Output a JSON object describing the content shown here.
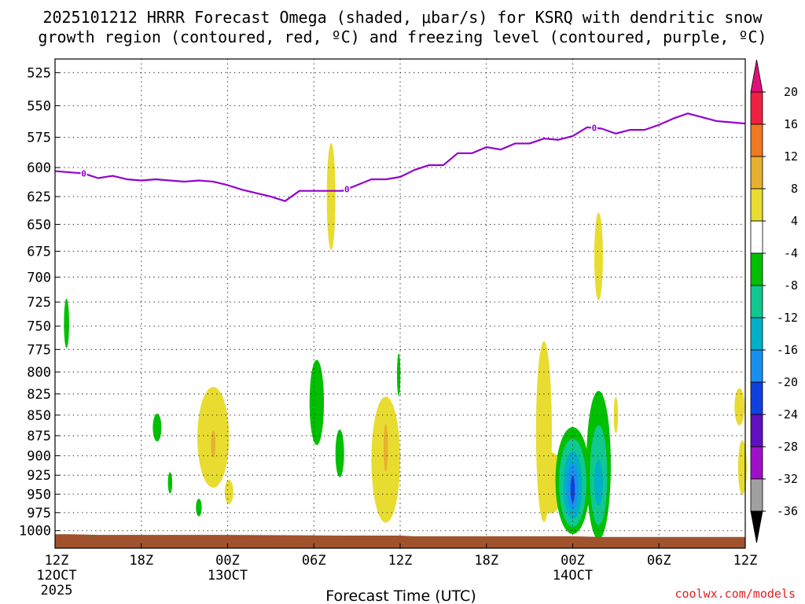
{
  "chart_data": {
    "type": "time-height contour",
    "title_line1": "2025101212 HRRR Forecast Omega (shaded, μbar/s) for KSRQ with dendritic snow",
    "title_line2": "growth region (contoured, red, ºC) and freezing level (contoured, purple, ºC)",
    "xlabel": "Forecast Time (UTC)",
    "credit": "coolwx.com/models",
    "x_range_hours": [
      0,
      48
    ],
    "y_range_hpa": [
      1025,
      515
    ],
    "x_ticks": [
      {
        "h": 0,
        "l1": "12Z",
        "l2": "12OCT",
        "l3": "2025"
      },
      {
        "h": 6,
        "l1": "18Z",
        "l2": "",
        "l3": ""
      },
      {
        "h": 12,
        "l1": "00Z",
        "l2": "13OCT",
        "l3": ""
      },
      {
        "h": 18,
        "l1": "06Z",
        "l2": "",
        "l3": ""
      },
      {
        "h": 24,
        "l1": "12Z",
        "l2": "",
        "l3": ""
      },
      {
        "h": 30,
        "l1": "18Z",
        "l2": "",
        "l3": ""
      },
      {
        "h": 36,
        "l1": "00Z",
        "l2": "14OCT",
        "l3": ""
      },
      {
        "h": 42,
        "l1": "06Z",
        "l2": "",
        "l3": ""
      },
      {
        "h": 48,
        "l1": "12Z",
        "l2": "",
        "l3": ""
      }
    ],
    "y_ticks": [
      525,
      550,
      575,
      600,
      625,
      650,
      675,
      700,
      725,
      750,
      775,
      800,
      825,
      850,
      875,
      900,
      925,
      950,
      975,
      1000
    ],
    "y_tick_labels": [
      "525",
      "550",
      "575",
      "600",
      "625",
      "650",
      "675",
      "700",
      "725",
      "750",
      "775",
      "800",
      "825",
      "850",
      "875",
      "900",
      "925",
      "950",
      "975",
      "1000"
    ],
    "colorbar": {
      "labels": [
        "20",
        "16",
        "12",
        "8",
        "4",
        "-4",
        "-8",
        "-12",
        "-16",
        "-20",
        "-24",
        "-28",
        "-32",
        "-36"
      ],
      "colors": [
        "#f02040",
        "#f07820",
        "#e8b030",
        "#e8dc30",
        "#ffffff",
        "#00c000",
        "#10c890",
        "#00b0c8",
        "#1890f0",
        "#1040e0",
        "#6010c0",
        "#a010c8",
        "#a0a0a0"
      ],
      "top_arrow_color": "#e0107a",
      "bottom_arrow_color": "#000000"
    },
    "freezing_level": {
      "contour_value": "0",
      "color": "#9400cc",
      "points": [
        [
          0,
          603
        ],
        [
          1,
          604
        ],
        [
          2,
          605
        ],
        [
          3,
          609
        ],
        [
          4,
          607
        ],
        [
          5,
          610
        ],
        [
          6,
          611
        ],
        [
          7,
          610
        ],
        [
          8,
          611
        ],
        [
          9,
          612
        ],
        [
          10,
          611
        ],
        [
          11,
          612
        ],
        [
          12,
          615
        ],
        [
          13,
          619
        ],
        [
          14,
          622
        ],
        [
          15,
          625
        ],
        [
          16,
          629
        ],
        [
          17,
          620
        ],
        [
          18,
          620
        ],
        [
          19,
          620
        ],
        [
          20,
          620
        ],
        [
          21,
          615
        ],
        [
          22,
          610
        ],
        [
          23,
          610
        ],
        [
          24,
          608
        ],
        [
          25,
          602
        ],
        [
          26,
          598
        ],
        [
          27,
          598
        ],
        [
          28,
          588
        ],
        [
          29,
          588
        ],
        [
          30,
          583
        ],
        [
          31,
          585
        ],
        [
          32,
          580
        ],
        [
          33,
          580
        ],
        [
          34,
          576
        ],
        [
          35,
          577
        ],
        [
          36,
          574
        ],
        [
          37,
          567
        ],
        [
          38,
          568
        ],
        [
          39,
          572
        ],
        [
          40,
          569
        ],
        [
          41,
          569
        ],
        [
          42,
          565
        ],
        [
          43,
          560
        ],
        [
          44,
          556
        ],
        [
          45,
          559
        ],
        [
          46,
          562
        ],
        [
          47,
          563
        ],
        [
          48,
          564
        ]
      ],
      "label_hours": [
        2,
        20.3,
        37.5
      ]
    },
    "surface_fill_color": "#a0522d",
    "surface": [
      [
        0,
        1005
      ],
      [
        1,
        1005
      ],
      [
        3,
        1006
      ],
      [
        12,
        1006
      ],
      [
        20,
        1007
      ],
      [
        24,
        1007
      ],
      [
        25,
        1008
      ],
      [
        36,
        1008
      ],
      [
        38,
        1009
      ],
      [
        48,
        1009
      ]
    ],
    "omega_shading": [
      {
        "color": "#e8dc30",
        "value": 4,
        "cx": 19.2,
        "cy": 625,
        "rx": 0.3,
        "ry": 47
      },
      {
        "color": "#e8dc30",
        "value": 4,
        "cx": 11.0,
        "cy": 877,
        "rx": 1.1,
        "ry": 62
      },
      {
        "color": "#e8dc30",
        "value": 4,
        "cx": 12.1,
        "cy": 947,
        "rx": 0.3,
        "ry": 16
      },
      {
        "color": "#e8b030",
        "value": 8,
        "cx": 11.0,
        "cy": 885,
        "rx": 0.15,
        "ry": 17
      },
      {
        "color": "#e8dc30",
        "value": 4,
        "cx": 23.0,
        "cy": 905,
        "rx": 1.0,
        "ry": 80
      },
      {
        "color": "#e8b030",
        "value": 8,
        "cx": 23.0,
        "cy": 890,
        "rx": 0.15,
        "ry": 30
      },
      {
        "color": "#e8dc30",
        "value": 4,
        "cx": 34.0,
        "cy": 870,
        "rx": 0.55,
        "ry": 110
      },
      {
        "color": "#e8dc30",
        "value": 4,
        "cx": 34.5,
        "cy": 935,
        "rx": 0.9,
        "ry": 40
      },
      {
        "color": "#e8dc30",
        "value": 4,
        "cx": 37.8,
        "cy": 680,
        "rx": 0.3,
        "ry": 42
      },
      {
        "color": "#e8dc30",
        "value": 4,
        "cx": 39.0,
        "cy": 850,
        "rx": 0.15,
        "ry": 22
      },
      {
        "color": "#e8dc30",
        "value": 4,
        "cx": 47.6,
        "cy": 840,
        "rx": 0.35,
        "ry": 22
      },
      {
        "color": "#e8dc30",
        "value": 4,
        "cx": 47.8,
        "cy": 915,
        "rx": 0.3,
        "ry": 35
      },
      {
        "color": "#00c000",
        "value": -4,
        "cx": 0.8,
        "cy": 747,
        "rx": 0.18,
        "ry": 26
      },
      {
        "color": "#00c000",
        "value": -4,
        "cx": 7.1,
        "cy": 865,
        "rx": 0.3,
        "ry": 17
      },
      {
        "color": "#00c000",
        "value": -4,
        "cx": 8.0,
        "cy": 935,
        "rx": 0.15,
        "ry": 14
      },
      {
        "color": "#00c000",
        "value": -4,
        "cx": 10.0,
        "cy": 968,
        "rx": 0.2,
        "ry": 12
      },
      {
        "color": "#00c000",
        "value": -4,
        "cx": 18.2,
        "cy": 835,
        "rx": 0.5,
        "ry": 50
      },
      {
        "color": "#00c000",
        "value": -4,
        "cx": 19.8,
        "cy": 897,
        "rx": 0.3,
        "ry": 30
      },
      {
        "color": "#00c000",
        "value": -4,
        "cx": 23.9,
        "cy": 803,
        "rx": 0.12,
        "ry": 24
      },
      {
        "color": "#00c000",
        "value": -4,
        "cx": 36.0,
        "cy": 932,
        "rx": 1.2,
        "ry": 70
      },
      {
        "color": "#10c890",
        "value": -8,
        "cx": 36.0,
        "cy": 935,
        "rx": 0.95,
        "ry": 58
      },
      {
        "color": "#00b0c8",
        "value": -12,
        "cx": 36.0,
        "cy": 938,
        "rx": 0.65,
        "ry": 45
      },
      {
        "color": "#1890f0",
        "value": -16,
        "cx": 36.0,
        "cy": 940,
        "rx": 0.4,
        "ry": 30
      },
      {
        "color": "#1040e0",
        "value": -20,
        "cx": 36.0,
        "cy": 943,
        "rx": 0.15,
        "ry": 18
      },
      {
        "color": "#00c000",
        "value": -4,
        "cx": 37.8,
        "cy": 912,
        "rx": 0.85,
        "ry": 95
      },
      {
        "color": "#10c890",
        "value": -8,
        "cx": 37.8,
        "cy": 925,
        "rx": 0.6,
        "ry": 65
      },
      {
        "color": "#00b0c8",
        "value": -12,
        "cx": 37.8,
        "cy": 935,
        "rx": 0.3,
        "ry": 30
      }
    ]
  }
}
